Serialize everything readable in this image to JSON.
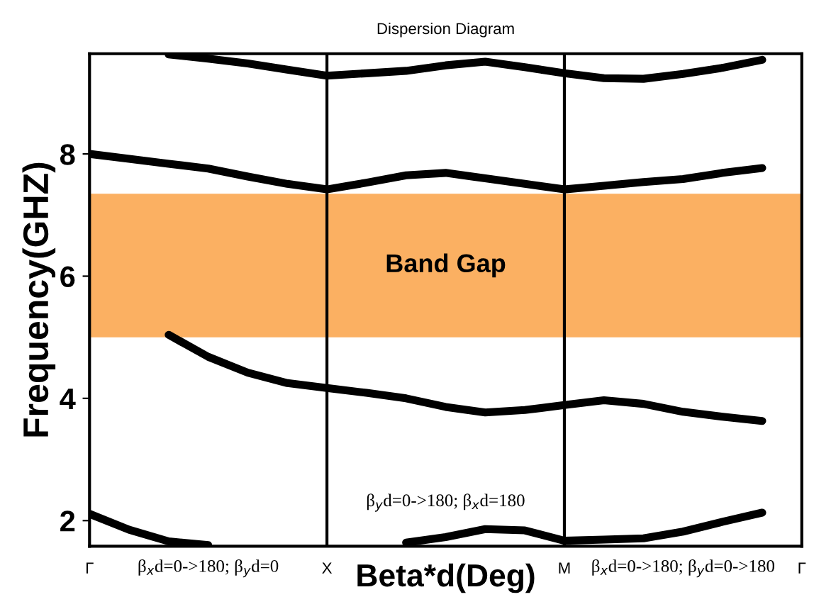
{
  "chart_data": {
    "type": "line",
    "title": "Dispersion Diagram",
    "xlabel": "Beta*d(Deg)",
    "ylabel": "Frequency(GHZ)",
    "categories": [
      "Γ",
      null,
      null,
      null,
      null,
      null,
      "X",
      null,
      null,
      null,
      null,
      null,
      "M",
      null,
      null,
      null,
      null,
      null,
      "Γ"
    ],
    "ylim": [
      1.58,
      9.64
    ],
    "yticks": [
      2,
      4,
      6,
      8
    ],
    "grid": false,
    "legend": false,
    "marker": "none",
    "line_style": "solid",
    "bands": [
      {
        "axis": "y",
        "from": 5.0,
        "to": 7.35,
        "label": "Band Gap",
        "color": "#fbb062"
      }
    ],
    "ref_lines": [
      {
        "axis": "x",
        "value": "X",
        "label": null,
        "color": "#000000"
      },
      {
        "axis": "x",
        "value": "M",
        "label": null,
        "color": "#000000"
      }
    ],
    "annotations": [
      "β$_{x}$d=0->180; β$_{y}$d=0",
      "β$_{y}$d=0->180; β$_{x}$d=180",
      "β$_{x}$d=0->180; β$_{y}$d=0->180"
    ],
    "series": [
      {
        "color": "#000000",
        "values": [
          null,
          null,
          9.63,
          9.56,
          9.48,
          9.38,
          9.28,
          9.32,
          9.36,
          9.45,
          9.51,
          9.42,
          9.32,
          9.24,
          9.23,
          9.31,
          9.41,
          9.54,
          null
        ]
      },
      {
        "color": "#000000",
        "values": [
          8.0,
          7.92,
          7.84,
          7.76,
          7.63,
          7.51,
          7.42,
          7.53,
          7.65,
          7.69,
          7.6,
          7.51,
          7.42,
          7.48,
          7.54,
          7.59,
          7.69,
          7.77,
          null
        ]
      },
      {
        "color": "#000000",
        "values": [
          null,
          null,
          5.04,
          4.68,
          4.42,
          4.25,
          4.17,
          4.09,
          4.0,
          3.86,
          3.77,
          3.81,
          3.89,
          3.97,
          3.91,
          3.78,
          3.7,
          3.63,
          null
        ]
      },
      {
        "color": "#000000",
        "values": [
          2.11,
          1.85,
          1.66,
          1.6,
          null,
          null,
          null,
          null,
          null,
          null,
          null,
          null,
          null,
          null,
          null,
          null,
          null,
          null,
          null
        ]
      },
      {
        "color": "#000000",
        "values": [
          null,
          null,
          null,
          null,
          null,
          null,
          null,
          null,
          1.64,
          1.73,
          1.86,
          1.84,
          1.67,
          1.69,
          1.71,
          1.82,
          1.98,
          2.13,
          null
        ]
      }
    ]
  }
}
